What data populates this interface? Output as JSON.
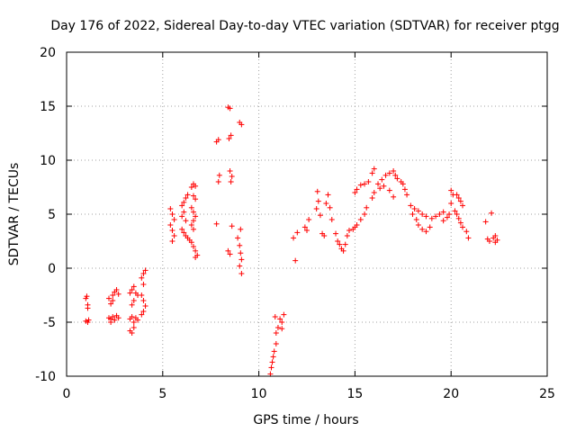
{
  "chart_data": {
    "type": "scatter",
    "title": "Day 176 of 2022, Sidereal Day-to-day VTEC variation (SDTVAR) for receiver ptgg",
    "xlabel": "GPS time / hours",
    "ylabel": "SDTVAR / TECUs",
    "xlim": [
      0,
      25
    ],
    "ylim": [
      -10,
      20
    ],
    "xticks": [
      0,
      5,
      10,
      15,
      20,
      25
    ],
    "yticks": [
      -10,
      -5,
      0,
      5,
      10,
      15,
      20
    ],
    "xtick_labels": [
      "0",
      "5",
      "10",
      "15",
      "20",
      "25"
    ],
    "ytick_labels": [
      "-10",
      "-5",
      "0",
      "5",
      "10",
      "15",
      "20"
    ],
    "grid": true,
    "marker": "plus",
    "color": "#ff0000",
    "series": [
      {
        "name": "SDTVAR",
        "points": [
          [
            1.0,
            -2.8
          ],
          [
            1.05,
            -2.6
          ],
          [
            1.1,
            -3.4
          ],
          [
            1.1,
            -3.7
          ],
          [
            1.0,
            -4.9
          ],
          [
            1.1,
            -5.0
          ],
          [
            1.15,
            -4.8
          ],
          [
            2.2,
            -2.8
          ],
          [
            2.3,
            -3.3
          ],
          [
            2.4,
            -2.5
          ],
          [
            2.5,
            -2.2
          ],
          [
            2.6,
            -2.0
          ],
          [
            2.7,
            -2.4
          ],
          [
            2.4,
            -3.0
          ],
          [
            2.2,
            -4.6
          ],
          [
            2.3,
            -4.7
          ],
          [
            2.4,
            -4.5
          ],
          [
            2.5,
            -4.8
          ],
          [
            2.6,
            -4.4
          ],
          [
            2.7,
            -4.6
          ],
          [
            2.3,
            -5.0
          ],
          [
            3.3,
            -2.3
          ],
          [
            3.4,
            -2.0
          ],
          [
            3.5,
            -1.7
          ],
          [
            3.6,
            -2.3
          ],
          [
            3.7,
            -2.5
          ],
          [
            3.4,
            -3.4
          ],
          [
            3.5,
            -3.0
          ],
          [
            3.3,
            -4.7
          ],
          [
            3.4,
            -4.5
          ],
          [
            3.5,
            -5.0
          ],
          [
            3.6,
            -4.6
          ],
          [
            3.7,
            -4.8
          ],
          [
            3.3,
            -5.8
          ],
          [
            3.4,
            -6.0
          ],
          [
            3.5,
            -5.5
          ],
          [
            3.9,
            -0.9
          ],
          [
            4.0,
            -0.5
          ],
          [
            4.1,
            -0.2
          ],
          [
            4.0,
            -1.5
          ],
          [
            3.9,
            -2.5
          ],
          [
            4.0,
            -3.0
          ],
          [
            4.1,
            -3.5
          ],
          [
            4.0,
            -4.0
          ],
          [
            3.9,
            -4.3
          ],
          [
            5.4,
            5.5
          ],
          [
            5.5,
            5.0
          ],
          [
            5.6,
            4.5
          ],
          [
            5.4,
            4.0
          ],
          [
            5.5,
            3.5
          ],
          [
            5.6,
            3.0
          ],
          [
            5.5,
            2.5
          ],
          [
            6.0,
            5.8
          ],
          [
            6.1,
            6.1
          ],
          [
            6.2,
            6.5
          ],
          [
            6.3,
            6.8
          ],
          [
            6.0,
            4.8
          ],
          [
            6.1,
            5.2
          ],
          [
            6.2,
            4.4
          ],
          [
            6.0,
            3.6
          ],
          [
            6.1,
            3.3
          ],
          [
            6.2,
            3.0
          ],
          [
            6.3,
            2.8
          ],
          [
            6.4,
            2.6
          ],
          [
            6.5,
            7.5
          ],
          [
            6.6,
            7.8
          ],
          [
            6.7,
            7.6
          ],
          [
            6.6,
            6.7
          ],
          [
            6.7,
            6.4
          ],
          [
            6.5,
            5.6
          ],
          [
            6.6,
            5.2
          ],
          [
            6.7,
            4.8
          ],
          [
            6.6,
            4.4
          ],
          [
            6.5,
            4.0
          ],
          [
            6.6,
            3.6
          ],
          [
            6.5,
            2.4
          ],
          [
            6.6,
            2.0
          ],
          [
            6.7,
            1.6
          ],
          [
            6.8,
            1.2
          ],
          [
            6.7,
            1.0
          ],
          [
            7.8,
            4.1
          ],
          [
            7.9,
            8.0
          ],
          [
            7.95,
            8.6
          ],
          [
            7.8,
            11.7
          ],
          [
            7.9,
            11.9
          ],
          [
            8.4,
            14.9
          ],
          [
            8.5,
            14.8
          ],
          [
            8.45,
            12.0
          ],
          [
            8.55,
            12.3
          ],
          [
            8.5,
            9.0
          ],
          [
            8.6,
            8.5
          ],
          [
            8.55,
            8.0
          ],
          [
            8.6,
            3.9
          ],
          [
            8.4,
            1.6
          ],
          [
            8.5,
            1.3
          ],
          [
            9.0,
            13.5
          ],
          [
            9.1,
            13.3
          ],
          [
            9.05,
            3.6
          ],
          [
            8.9,
            2.8
          ],
          [
            9.0,
            2.1
          ],
          [
            9.05,
            1.4
          ],
          [
            9.1,
            0.8
          ],
          [
            9.0,
            0.2
          ],
          [
            9.1,
            -0.5
          ],
          [
            10.6,
            -9.8
          ],
          [
            10.65,
            -9.2
          ],
          [
            10.7,
            -8.7
          ],
          [
            10.75,
            -8.2
          ],
          [
            10.8,
            -7.7
          ],
          [
            10.9,
            -7.0
          ],
          [
            10.9,
            -6.0
          ],
          [
            10.85,
            -4.5
          ],
          [
            11.0,
            -5.5
          ],
          [
            11.1,
            -4.7
          ],
          [
            11.2,
            -5.0
          ],
          [
            11.3,
            -4.3
          ],
          [
            11.2,
            -5.6
          ],
          [
            11.8,
            2.8
          ],
          [
            11.9,
            0.7
          ],
          [
            12.0,
            3.3
          ],
          [
            12.4,
            3.8
          ],
          [
            12.6,
            4.5
          ],
          [
            12.5,
            3.5
          ],
          [
            13.0,
            5.5
          ],
          [
            13.1,
            6.2
          ],
          [
            13.05,
            7.1
          ],
          [
            13.2,
            4.9
          ],
          [
            13.3,
            3.2
          ],
          [
            13.4,
            3.0
          ],
          [
            13.5,
            6.0
          ],
          [
            13.6,
            6.8
          ],
          [
            13.7,
            5.6
          ],
          [
            13.8,
            4.5
          ],
          [
            14.0,
            3.2
          ],
          [
            14.1,
            2.5
          ],
          [
            14.2,
            2.2
          ],
          [
            14.3,
            1.8
          ],
          [
            14.4,
            1.6
          ],
          [
            14.5,
            2.2
          ],
          [
            14.6,
            3.0
          ],
          [
            14.7,
            3.5
          ],
          [
            14.9,
            3.6
          ],
          [
            15.0,
            3.8
          ],
          [
            15.1,
            4.0
          ],
          [
            15.3,
            4.5
          ],
          [
            15.5,
            5.0
          ],
          [
            15.6,
            5.6
          ],
          [
            15.0,
            7.0
          ],
          [
            15.1,
            7.3
          ],
          [
            15.3,
            7.7
          ],
          [
            15.5,
            7.8
          ],
          [
            15.7,
            8.0
          ],
          [
            15.9,
            8.8
          ],
          [
            16.0,
            9.2
          ],
          [
            15.9,
            6.5
          ],
          [
            16.0,
            7.0
          ],
          [
            16.2,
            7.8
          ],
          [
            16.4,
            8.2
          ],
          [
            16.6,
            8.6
          ],
          [
            16.8,
            8.8
          ],
          [
            17.0,
            9.0
          ],
          [
            17.1,
            8.6
          ],
          [
            17.2,
            8.3
          ],
          [
            17.4,
            8.0
          ],
          [
            17.5,
            7.8
          ],
          [
            17.6,
            7.3
          ],
          [
            17.7,
            6.8
          ],
          [
            16.3,
            7.4
          ],
          [
            16.5,
            7.6
          ],
          [
            16.8,
            7.2
          ],
          [
            17.0,
            6.6
          ],
          [
            17.9,
            5.8
          ],
          [
            18.0,
            5.0
          ],
          [
            18.2,
            4.5
          ],
          [
            18.3,
            4.0
          ],
          [
            18.5,
            3.6
          ],
          [
            18.7,
            3.4
          ],
          [
            18.9,
            3.8
          ],
          [
            18.1,
            5.5
          ],
          [
            18.3,
            5.3
          ],
          [
            18.5,
            5.0
          ],
          [
            18.7,
            4.8
          ],
          [
            19.0,
            4.6
          ],
          [
            19.2,
            4.8
          ],
          [
            19.4,
            5.0
          ],
          [
            19.6,
            5.2
          ],
          [
            19.6,
            4.4
          ],
          [
            19.8,
            4.7
          ],
          [
            19.9,
            5.0
          ],
          [
            20.0,
            6.0
          ],
          [
            20.1,
            6.8
          ],
          [
            20.0,
            7.2
          ],
          [
            20.3,
            6.8
          ],
          [
            20.4,
            6.5
          ],
          [
            20.5,
            6.2
          ],
          [
            20.6,
            5.8
          ],
          [
            20.2,
            5.3
          ],
          [
            20.3,
            5.0
          ],
          [
            20.4,
            4.6
          ],
          [
            20.5,
            4.2
          ],
          [
            20.6,
            3.8
          ],
          [
            20.8,
            3.4
          ],
          [
            20.9,
            2.8
          ],
          [
            21.8,
            4.3
          ],
          [
            21.9,
            2.7
          ],
          [
            22.0,
            2.5
          ],
          [
            22.1,
            5.1
          ],
          [
            22.2,
            2.8
          ],
          [
            22.3,
            3.0
          ],
          [
            22.4,
            2.6
          ],
          [
            22.3,
            2.4
          ]
        ]
      }
    ]
  }
}
